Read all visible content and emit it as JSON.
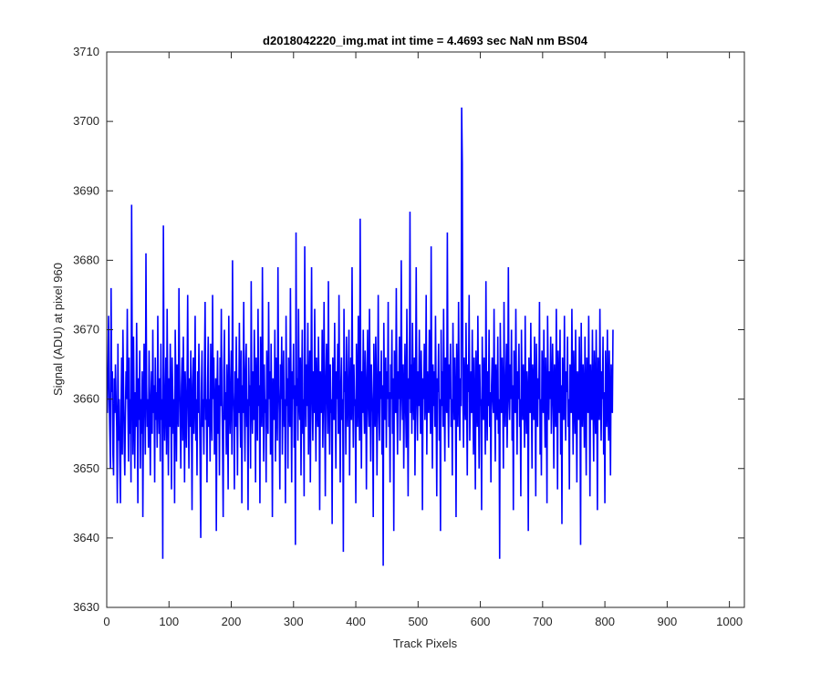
{
  "chart_data": {
    "type": "line",
    "title": "d2018042220_img.mat int time = 4.4693 sec  NaN nm BS04",
    "xlabel": "Track Pixels",
    "ylabel": "Signal (ADU) at pixel 960",
    "xlim": [
      0,
      1024
    ],
    "ylim": [
      3630,
      3710
    ],
    "xticks": [
      0,
      100,
      200,
      300,
      400,
      500,
      600,
      700,
      800,
      900,
      1000
    ],
    "yticks": [
      3630,
      3640,
      3650,
      3660,
      3670,
      3680,
      3690,
      3700,
      3710
    ],
    "xtick_labels": [
      "0",
      "100",
      "200",
      "300",
      "400",
      "500",
      "600",
      "700",
      "800",
      "900",
      "1000"
    ],
    "ytick_labels": [
      "3630",
      "3640",
      "3650",
      "3660",
      "3670",
      "3680",
      "3690",
      "3700",
      "3710"
    ],
    "grid": false,
    "series": [
      {
        "color": "#0000ff",
        "x_start": 1,
        "x_step": 1,
        "note_values": "approximate readings of a noisy trace",
        "y": [
          3658,
          3665,
          3672,
          3660,
          3655,
          3650,
          3676,
          3661,
          3664,
          3652,
          3649,
          3663,
          3658,
          3665,
          3660,
          3656,
          3645,
          3668,
          3654,
          3660,
          3651,
          3645,
          3659,
          3666,
          3652,
          3670,
          3662,
          3654,
          3649,
          3658,
          3664,
          3660,
          3673,
          3659,
          3651,
          3666,
          3655,
          3660,
          3648,
          3688,
          3664,
          3652,
          3669,
          3658,
          3650,
          3661,
          3656,
          3671,
          3660,
          3645,
          3663,
          3657,
          3667,
          3650,
          3660,
          3655,
          3664,
          3643,
          3658,
          3668,
          3660,
          3652,
          3681,
          3662,
          3656,
          3660,
          3653,
          3667,
          3659,
          3649,
          3660,
          3664,
          3655,
          3670,
          3658,
          3662,
          3648,
          3666,
          3657,
          3661,
          3653,
          3672,
          3660,
          3655,
          3663,
          3651,
          3668,
          3657,
          3660,
          3637,
          3685,
          3662,
          3654,
          3660,
          3666,
          3652,
          3673,
          3660,
          3649,
          3663,
          3656,
          3668,
          3659,
          3647,
          3666,
          3661,
          3655,
          3660,
          3645,
          3670,
          3662,
          3651,
          3665,
          3658,
          3656,
          3676,
          3663,
          3657,
          3650,
          3662,
          3666,
          3654,
          3669,
          3660,
          3648,
          3664,
          3659,
          3653,
          3662,
          3675,
          3659,
          3650,
          3663,
          3656,
          3667,
          3658,
          3644,
          3662,
          3666,
          3655,
          3660,
          3672,
          3654,
          3660,
          3649,
          3664,
          3658,
          3668,
          3660,
          3651,
          3640,
          3661,
          3667,
          3656,
          3660,
          3652,
          3665,
          3674,
          3657,
          3660,
          3648,
          3662,
          3669,
          3656,
          3660,
          3651,
          3668,
          3659,
          3654,
          3675,
          3660,
          3666,
          3652,
          3658,
          3663,
          3641,
          3660,
          3667,
          3655,
          3662,
          3649,
          3666,
          3659,
          3673,
          3660,
          3654,
          3643,
          3664,
          3670,
          3657,
          3661,
          3652,
          3665,
          3659,
          3647,
          3672,
          3660,
          3655,
          3662,
          3667,
          3652,
          3680,
          3661,
          3658,
          3647,
          3664,
          3656,
          3669,
          3660,
          3649,
          3663,
          3658,
          3671,
          3660,
          3653,
          3667,
          3645,
          3662,
          3658,
          3674,
          3660,
          3651,
          3664,
          3668,
          3656,
          3660,
          3644,
          3666,
          3659,
          3662,
          3650,
          3677,
          3660,
          3655,
          3664,
          3657,
          3670,
          3661,
          3648,
          3666,
          3660,
          3654,
          3673,
          3659,
          3662,
          3645,
          3669,
          3660,
          3656,
          3679,
          3662,
          3651,
          3665,
          3658,
          3660,
          3648,
          3667,
          3661,
          3655,
          3674,
          3660,
          3664,
          3652,
          3668,
          3659,
          3643,
          3663,
          3660,
          3657,
          3670,
          3651,
          3666,
          3660,
          3654,
          3679,
          3662,
          3658,
          3647,
          3665,
          3660,
          3669,
          3652,
          3661,
          3667,
          3656,
          3660,
          3645,
          3672,
          3659,
          3663,
          3650,
          3666,
          3660,
          3656,
          3676,
          3661,
          3648,
          3664,
          3660,
          3668,
          3653,
          3662,
          3639,
          3684,
          3659,
          3663,
          3654,
          3673,
          3660,
          3657,
          3666,
          3649,
          3661,
          3670,
          3655,
          3660,
          3646,
          3682,
          3662,
          3656,
          3665,
          3659,
          3671,
          3652,
          3660,
          3667,
          3648,
          3663,
          3679,
          3660,
          3654,
          3664,
          3658,
          3673,
          3660,
          3651,
          3666,
          3660,
          3656,
          3669,
          3662,
          3644,
          3664,
          3660,
          3658,
          3670,
          3653,
          3661,
          3674,
          3659,
          3646,
          3663,
          3668,
          3660,
          3655,
          3677,
          3661,
          3652,
          3665,
          3658,
          3660,
          3642,
          3666,
          3663,
          3657,
          3671,
          3660,
          3650,
          3664,
          3660,
          3668,
          3655,
          3675,
          3659,
          3648,
          3662,
          3666,
          3657,
          3660,
          3638,
          3673,
          3661,
          3664,
          3652,
          3669,
          3660,
          3656,
          3663,
          3670,
          3649,
          3660,
          3666,
          3657,
          3679,
          3661,
          3653,
          3665,
          3659,
          3660,
          3645,
          3668,
          3662,
          3656,
          3672,
          3660,
          3654,
          3686,
          3661,
          3650,
          3664,
          3658,
          3670,
          3660,
          3655,
          3667,
          3662,
          3647,
          3662,
          3670,
          3659,
          3656,
          3673,
          3660,
          3651,
          3665,
          3661,
          3658,
          3643,
          3668,
          3660,
          3656,
          3669,
          3663,
          3649,
          3660,
          3675,
          3659,
          3654,
          3664,
          3660,
          3667,
          3652,
          3662,
          3636,
          3671,
          3660,
          3657,
          3666,
          3653,
          3664,
          3660,
          3674,
          3656,
          3661,
          3648,
          3665,
          3660,
          3670,
          3655,
          3663,
          3641,
          3667,
          3660,
          3658,
          3676,
          3661,
          3652,
          3664,
          3660,
          3669,
          3654,
          3660,
          3680,
          3662,
          3657,
          3665,
          3650,
          3660,
          3668,
          3659,
          3653,
          3673,
          3661,
          3646,
          3663,
          3660,
          3687,
          3658,
          3665,
          3655,
          3671,
          3660,
          3657,
          3666,
          3649,
          3662,
          3679,
          3660,
          3654,
          3664,
          3659,
          3670,
          3660,
          3655,
          3667,
          3661,
          3644,
          3663,
          3660,
          3668,
          3657,
          3660,
          3675,
          3652,
          3664,
          3660,
          3658,
          3670,
          3661,
          3655,
          3682,
          3660,
          3650,
          3665,
          3659,
          3664,
          3656,
          3672,
          3660,
          3646,
          3663,
          3661,
          3668,
          3654,
          3660,
          3641,
          3670,
          3659,
          3664,
          3656,
          3673,
          3660,
          3651,
          3666,
          3660,
          3658,
          3684,
          3661,
          3653,
          3665,
          3660,
          3668,
          3656,
          3660,
          3649,
          3671,
          3662,
          3657,
          3666,
          3660,
          3643,
          3668,
          3660,
          3656,
          3674,
          3661,
          3654,
          3663,
          3659,
          3702,
          3694,
          3660,
          3653,
          3666,
          3660,
          3657,
          3671,
          3660,
          3649,
          3665,
          3661,
          3675,
          3654,
          3660,
          3664,
          3658,
          3670,
          3660,
          3652,
          3666,
          3659,
          3647,
          3667,
          3660,
          3656,
          3672,
          3661,
          3650,
          3665,
          3659,
          3660,
          3644,
          3669,
          3661,
          3657,
          3666,
          3660,
          3652,
          3677,
          3660,
          3654,
          3664,
          3659,
          3670,
          3656,
          3661,
          3648,
          3662,
          3666,
          3660,
          3658,
          3673,
          3660,
          3651,
          3665,
          3661,
          3657,
          3669,
          3655,
          3660,
          3637,
          3671,
          3662,
          3658,
          3666,
          3660,
          3650,
          3674,
          3660,
          3656,
          3663,
          3668,
          3653,
          3660,
          3679,
          3661,
          3657,
          3665,
          3660,
          3670,
          3654,
          3662,
          3644,
          3667,
          3660,
          3658,
          3673,
          3661,
          3652,
          3664,
          3660,
          3668,
          3656,
          3660,
          3646,
          3670,
          3661,
          3657,
          3665,
          3660,
          3653,
          3672,
          3660,
          3655,
          3664,
          3661,
          3641,
          3666,
          3660,
          3658,
          3671,
          3660,
          3650,
          3665,
          3662,
          3657,
          3669,
          3660,
          3646,
          3668,
          3661,
          3656,
          3663,
          3660,
          3674,
          3652,
          3660,
          3649,
          3667,
          3661,
          3658,
          3670,
          3660,
          3653,
          3666,
          3660,
          3645,
          3672,
          3662,
          3657,
          3664,
          3660,
          3669,
          3655,
          3660,
          3668,
          3661,
          3650,
          3665,
          3660,
          3656,
          3673,
          3661,
          3647,
          3667,
          3660,
          3658,
          3670,
          3652,
          3662,
          3642,
          3666,
          3660,
          3657,
          3672,
          3660,
          3654,
          3664,
          3661,
          3669,
          3656,
          3660,
          3647,
          3665,
          3660,
          3658,
          3673,
          3661,
          3652,
          3667,
          3660,
          3655,
          3670,
          3660,
          3648,
          3664,
          3662,
          3657,
          3669,
          3660,
          3639,
          3671,
          3660,
          3656,
          3665,
          3661,
          3653,
          3669,
          3660,
          3649,
          3666,
          3660,
          3658,
          3672,
          3661,
          3646,
          3665,
          3660,
          3657,
          3670,
          3660,
          3651,
          3667,
          3661,
          3655,
          3670,
          3660,
          3644,
          3666,
          3662,
          3657,
          3673,
          3660,
          3654,
          3664,
          3660,
          3669,
          3652,
          3661,
          3645,
          3667,
          3660,
          3656,
          3670,
          3659,
          3654,
          3667,
          3660,
          3649,
          3665,
          3661,
          3658,
          3670
        ]
      }
    ]
  }
}
